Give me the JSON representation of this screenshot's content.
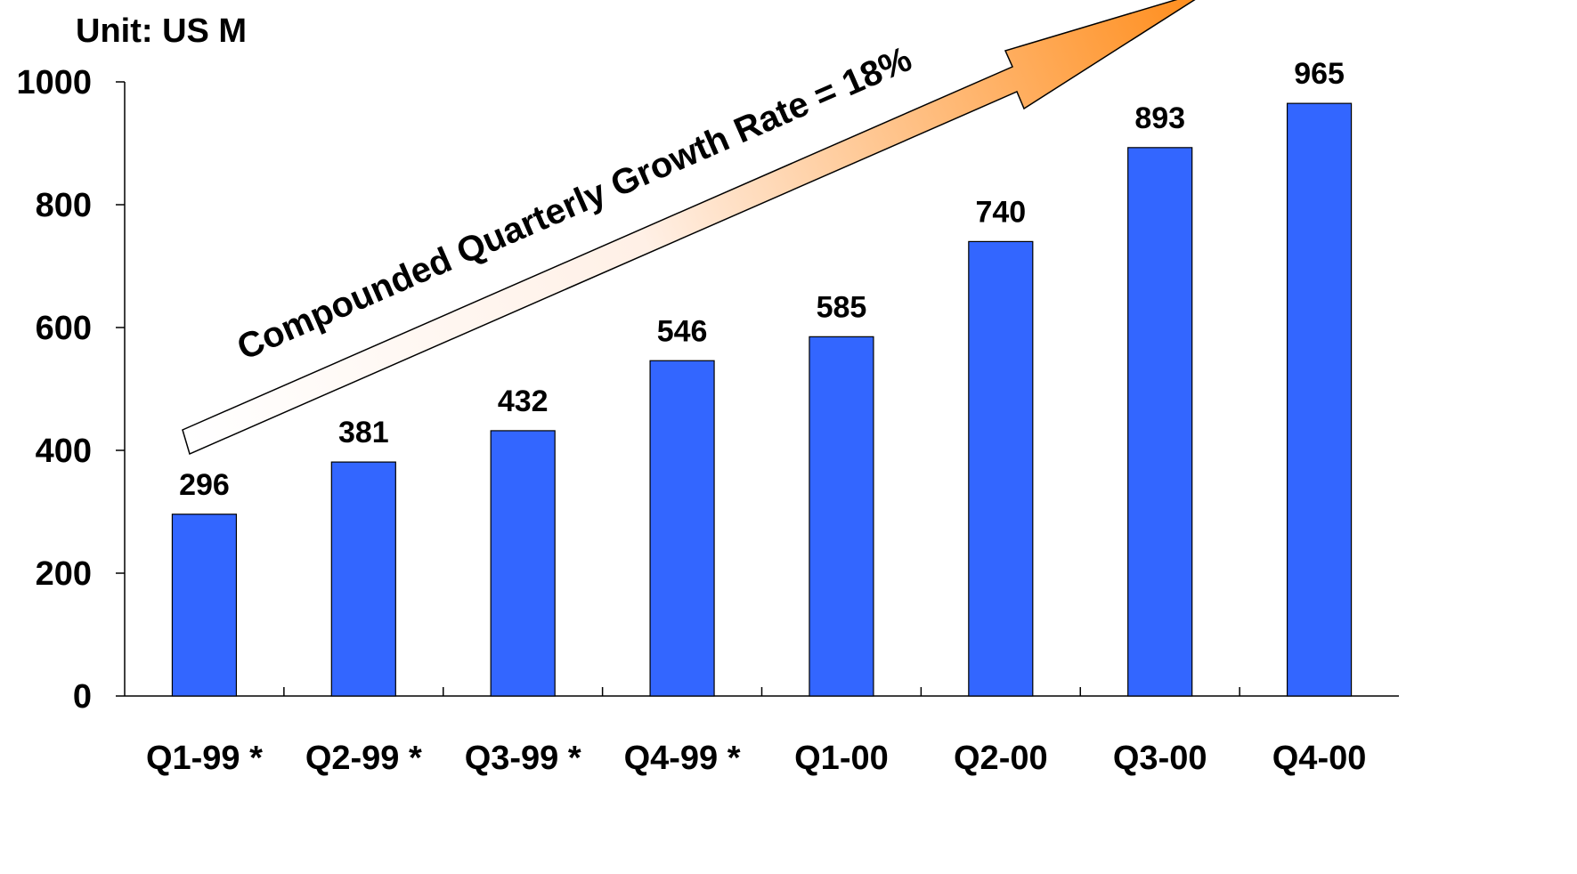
{
  "chart_data": {
    "type": "bar",
    "unit_label": "Unit: US M",
    "categories": [
      "Q1-99 *",
      "Q2-99 *",
      "Q3-99 *",
      "Q4-99 *",
      "Q1-00",
      "Q2-00",
      "Q3-00",
      "Q4-00"
    ],
    "values": [
      296,
      381,
      432,
      546,
      585,
      740,
      893,
      965
    ],
    "ylim": [
      0,
      1000
    ],
    "yticks": [
      0,
      200,
      400,
      600,
      800,
      1000
    ],
    "ytick_labels": [
      "0",
      "200",
      "400",
      "600",
      "800",
      "1000"
    ],
    "grid": false,
    "legend": "none",
    "annotation": "Compounded Quarterly Growth Rate = 18%",
    "colors": {
      "bar": "#3366ff",
      "arrow_start": "#ffffff",
      "arrow_end": "#ff8c1a"
    }
  }
}
